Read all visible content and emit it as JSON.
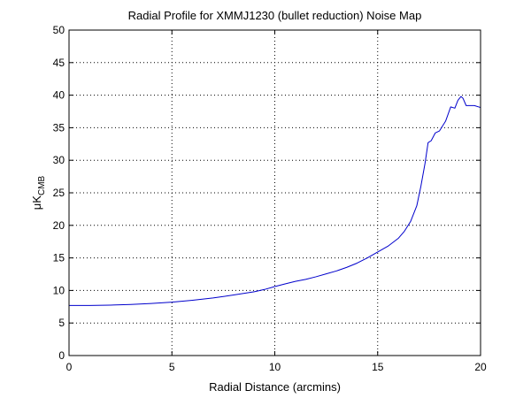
{
  "chart_data": {
    "type": "line",
    "title": "Radial Profile for XMMJ1230 (bullet reduction) Noise Map",
    "xlabel": "Radial Distance (arcmins)",
    "ylabel": {
      "main": "μK",
      "sub": "CMB"
    },
    "xlim": [
      0,
      20
    ],
    "ylim": [
      0,
      50
    ],
    "xticks": [
      0,
      5,
      10,
      15,
      20
    ],
    "yticks": [
      0,
      5,
      10,
      15,
      20,
      25,
      30,
      35,
      40,
      45,
      50
    ],
    "grid": true,
    "series": [
      {
        "color": "#0000cc",
        "x": [
          0,
          1,
          2,
          3,
          4,
          5,
          6,
          7,
          8,
          9,
          9.5,
          10,
          10.5,
          11,
          11.5,
          12,
          12.5,
          13,
          13.5,
          14,
          14.5,
          15,
          15.5,
          16,
          16.3,
          16.6,
          16.9,
          17.1,
          17.3,
          17.45,
          17.6,
          17.8,
          18,
          18.3,
          18.55,
          18.75,
          18.9,
          19.05,
          19.15,
          19.3,
          19.45,
          19.7,
          20
        ],
        "y": [
          7.7,
          7.7,
          7.75,
          7.85,
          8.0,
          8.2,
          8.5,
          8.85,
          9.3,
          9.8,
          10.15,
          10.6,
          11.0,
          11.4,
          11.7,
          12.1,
          12.55,
          13.0,
          13.55,
          14.2,
          15.0,
          15.9,
          16.8,
          18.0,
          19.1,
          20.6,
          23.0,
          26.0,
          29.5,
          32.7,
          33.0,
          34.2,
          34.5,
          36.0,
          38.2,
          38.0,
          39.2,
          39.8,
          39.5,
          38.4,
          38.4,
          38.4,
          38.1
        ]
      }
    ]
  }
}
